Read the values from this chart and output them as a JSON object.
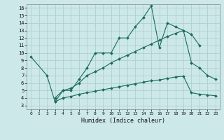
{
  "xlabel": "Humidex (Indice chaleur)",
  "background_color": "#cce8e8",
  "line_color": "#1a6b5a",
  "grid_color": "#aacccc",
  "xlim": [
    -0.5,
    23.5
  ],
  "ylim": [
    2.5,
    16.5
  ],
  "xticks": [
    0,
    1,
    2,
    3,
    4,
    5,
    6,
    7,
    8,
    9,
    10,
    11,
    12,
    13,
    14,
    15,
    16,
    17,
    18,
    19,
    20,
    21,
    22,
    23
  ],
  "yticks": [
    3,
    4,
    5,
    6,
    7,
    8,
    9,
    10,
    11,
    12,
    13,
    14,
    15,
    16
  ],
  "line1_x": [
    0,
    2,
    3,
    4,
    5,
    6,
    7,
    8,
    9,
    10,
    11,
    12,
    13,
    14,
    15,
    16,
    17,
    18,
    19,
    20,
    21
  ],
  "line1_y": [
    9.5,
    7.0,
    3.5,
    5.0,
    5.0,
    6.5,
    8.0,
    10.0,
    10.0,
    10.0,
    12.0,
    12.0,
    13.5,
    14.7,
    16.3,
    10.7,
    14.0,
    13.5,
    13.0,
    12.5,
    11.0
  ],
  "line2_x": [
    3,
    4,
    5,
    6,
    7,
    8,
    9,
    10,
    11,
    12,
    13,
    14,
    15,
    16,
    17,
    18,
    19,
    20,
    21,
    22,
    23
  ],
  "line2_y": [
    4.0,
    5.0,
    5.3,
    6.0,
    7.0,
    7.5,
    8.0,
    8.7,
    9.2,
    9.7,
    10.2,
    10.7,
    11.2,
    11.7,
    12.2,
    12.6,
    13.0,
    8.7,
    8.0,
    7.0,
    6.5
  ],
  "line3_x": [
    3,
    4,
    5,
    6,
    7,
    8,
    9,
    10,
    11,
    12,
    13,
    14,
    15,
    16,
    17,
    18,
    19,
    20,
    21,
    22,
    23
  ],
  "line3_y": [
    3.5,
    4.0,
    4.2,
    4.5,
    4.7,
    4.9,
    5.1,
    5.3,
    5.5,
    5.7,
    5.9,
    6.1,
    6.3,
    6.4,
    6.6,
    6.8,
    6.9,
    4.7,
    4.5,
    4.4,
    4.3
  ]
}
